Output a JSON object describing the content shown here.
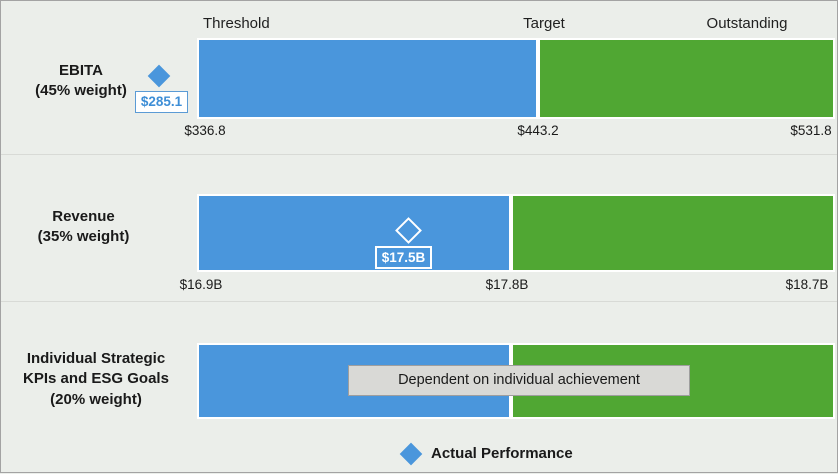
{
  "colors": {
    "blue_band": "#4a96dc",
    "green_band": "#50a733",
    "bar_outline": "#ffffff",
    "panel_background": "#ebeeea",
    "note_background": "#d9d9d6",
    "note_border": "#9e9e9e",
    "actual_label_blue": "#3e8ed6",
    "text": "#1a1a1a"
  },
  "headers": {
    "threshold": "Threshold",
    "target": "Target",
    "outstanding": "Outstanding"
  },
  "legend": {
    "label": "Actual Performance"
  },
  "chart_data": {
    "type": "bar",
    "subtype": "bullet-range-bands",
    "orientation": "horizontal",
    "bands": [
      "Threshold",
      "Target",
      "Outstanding"
    ],
    "legend": "Actual Performance",
    "legend_position": "bottom-center",
    "grid": false,
    "rows": [
      {
        "metric": "EBITA",
        "weight_label": "(45% weight)",
        "weight_pct": 45,
        "threshold": 336.8,
        "target": 443.2,
        "outstanding": 531.8,
        "actual": 285.1,
        "actual_label": "$285.1",
        "threshold_label": "$336.8",
        "target_label": "$443.2",
        "outstanding_label": "$531.8",
        "marker_style": "filled-diamond",
        "marker_note": "actual below threshold, shown left of bar"
      },
      {
        "metric": "Revenue",
        "weight_label": "(35% weight)",
        "weight_pct": 35,
        "threshold": 16.9,
        "target": 17.8,
        "outstanding": 18.7,
        "actual": 17.5,
        "actual_label": "$17.5B",
        "threshold_label": "$16.9B",
        "target_label": "$17.8B",
        "outstanding_label": "$18.7B",
        "marker_style": "hollow-diamond",
        "marker_note": "actual between threshold and target, shown on blue band"
      },
      {
        "metric": "Individual Strategic KPIs and ESG Goals",
        "metric_line1": "Individual Strategic",
        "metric_line2": "KPIs and ESG Goals",
        "weight_label": "(20% weight)",
        "weight_pct": 20,
        "overlay": "Dependent on individual achievement"
      }
    ]
  }
}
